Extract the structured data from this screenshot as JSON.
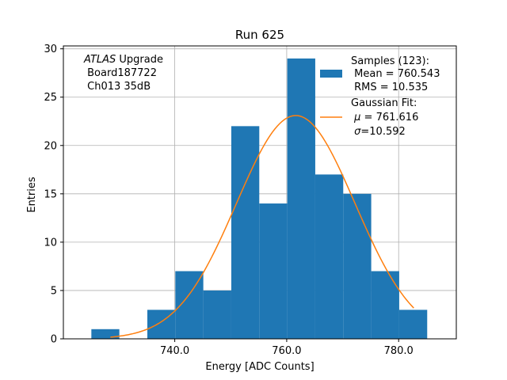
{
  "chart_data": {
    "type": "bar",
    "title": "Run 625",
    "xlabel": "Energy [ADC Counts]",
    "ylabel": "Entries",
    "xlim": [
      720.1,
      790.3
    ],
    "ylim": [
      0,
      30.3
    ],
    "grid": true,
    "x_ticks": [
      740.0,
      760.0,
      780.0
    ],
    "x_tick_labels": [
      "740.0",
      "760.0",
      "780.0"
    ],
    "y_ticks": [
      0,
      5,
      10,
      15,
      20,
      25,
      30
    ],
    "y_tick_labels": [
      "0",
      "5",
      "10",
      "15",
      "20",
      "25",
      "30"
    ],
    "bin_edges": [
      725.1,
      730.1,
      735.1,
      740.1,
      745.1,
      750.1,
      755.1,
      760.1,
      765.1,
      770.1,
      775.1,
      780.1,
      785.1
    ],
    "counts": [
      1,
      0,
      3,
      7,
      5,
      22,
      14,
      29,
      17,
      15,
      7,
      3
    ],
    "bar_color": "#1f77b4",
    "fit": {
      "type": "gaussian",
      "mu": 761.616,
      "sigma": 10.592,
      "amplitude": 23.1,
      "x_range": [
        728.5,
        782.7
      ],
      "color": "#ff7f0e"
    },
    "annotation": {
      "italic": "ATLAS",
      "line1_rest": " Upgrade",
      "line2": " Board187722",
      "line3": " Ch013 35dB"
    },
    "legend": {
      "position": "top-right",
      "samples": {
        "line1": "Samples (123):",
        "line2": " Mean = 760.543",
        "line3": " RMS = 10.535"
      },
      "fit": {
        "line1": "Gaussian Fit:",
        "mu_symbol": "μ",
        "mu_text": " = 761.616",
        "sigma_symbol": "σ",
        "sigma_text": "=10.592"
      }
    }
  }
}
